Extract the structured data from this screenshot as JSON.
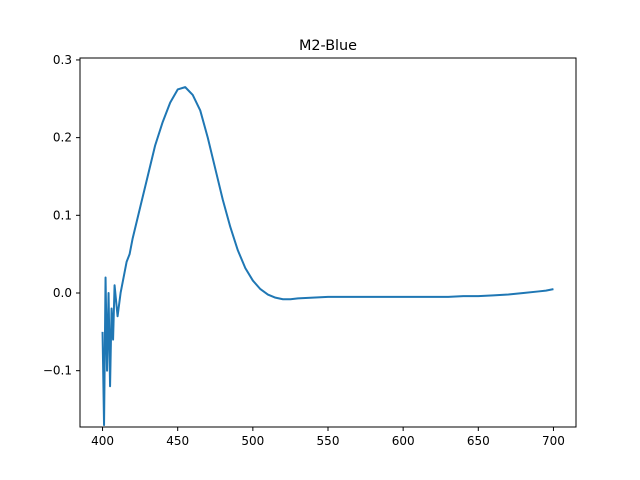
{
  "chart_data": {
    "type": "line",
    "title": "M2-Blue",
    "xlabel": "",
    "ylabel": "",
    "xlim": [
      385,
      715
    ],
    "ylim": [
      -0.1725,
      0.3025
    ],
    "x_ticks": [
      400,
      450,
      500,
      550,
      600,
      650,
      700
    ],
    "y_ticks": [
      -0.1,
      0.0,
      0.1,
      0.2,
      0.3
    ],
    "grid": false,
    "legend": "none",
    "series": [
      {
        "color": "#1f77b4",
        "x": [
          400,
          401,
          402,
          403,
          404,
          405,
          406,
          407,
          408,
          410,
          412,
          414,
          416,
          418,
          420,
          425,
          430,
          435,
          440,
          445,
          450,
          455,
          460,
          465,
          470,
          475,
          480,
          485,
          490,
          495,
          500,
          505,
          510,
          515,
          520,
          525,
          530,
          540,
          550,
          560,
          570,
          580,
          590,
          600,
          610,
          620,
          630,
          640,
          650,
          660,
          670,
          680,
          690,
          695,
          700
        ],
        "y": [
          -0.05,
          -0.17,
          0.02,
          -0.1,
          0.0,
          -0.12,
          -0.02,
          -0.06,
          0.01,
          -0.03,
          0.0,
          0.02,
          0.04,
          0.05,
          0.07,
          0.11,
          0.15,
          0.19,
          0.22,
          0.245,
          0.262,
          0.265,
          0.255,
          0.235,
          0.2,
          0.16,
          0.12,
          0.085,
          0.055,
          0.032,
          0.016,
          0.005,
          -0.002,
          -0.006,
          -0.008,
          -0.008,
          -0.007,
          -0.006,
          -0.005,
          -0.005,
          -0.005,
          -0.005,
          -0.005,
          -0.005,
          -0.005,
          -0.005,
          -0.005,
          -0.004,
          -0.004,
          -0.003,
          -0.002,
          0.0,
          0.002,
          0.003,
          0.005
        ]
      }
    ]
  }
}
